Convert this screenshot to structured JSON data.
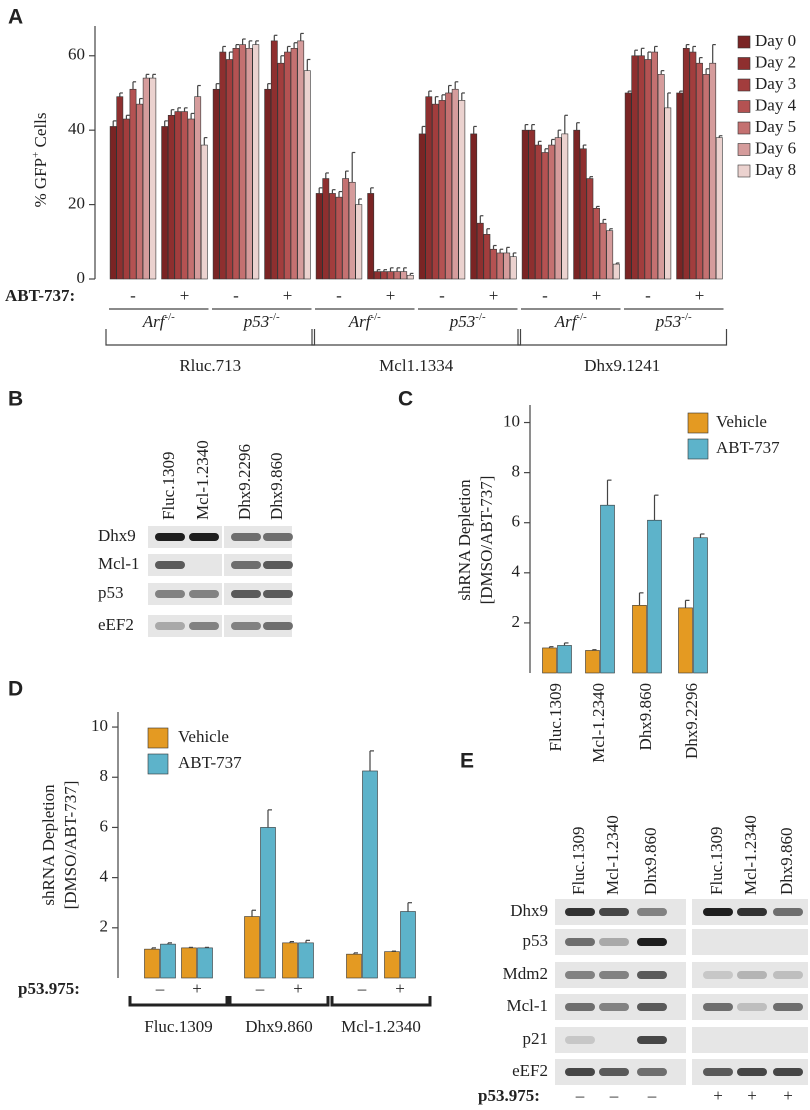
{
  "chart_data": [
    {
      "type": "bar",
      "panel": "A",
      "ylabel": {
        "text": "% GFP",
        "sup": "+",
        "rest": " Cells"
      },
      "category_label": "ABT-737:",
      "categories": [
        "-",
        "+",
        "-",
        "+",
        "-",
        "+",
        "-",
        "+",
        "-",
        "+",
        "-",
        "+"
      ],
      "genotypes": [
        {
          "name": "Arf",
          "sup": "-/-"
        },
        {
          "name": "p53",
          "sup": "-/-"
        },
        {
          "name": "Arf",
          "sup": "-/-"
        },
        {
          "name": "p53",
          "sup": "-/-"
        },
        {
          "name": "Arf",
          "sup": "-/-"
        },
        {
          "name": "p53",
          "sup": "-/-"
        }
      ],
      "groups": [
        "Rluc.713",
        "Mcl1.1334",
        "Dhx9.1241"
      ],
      "series": [
        {
          "name": "Day 0",
          "color": "#7a2424",
          "values": [
            41,
            41,
            51,
            51,
            23,
            23,
            39,
            39,
            40,
            40,
            50,
            50
          ],
          "errors": [
            1.5,
            1.5,
            1.5,
            1.5,
            1.5,
            1.5,
            2,
            2,
            1.5,
            2,
            0.5,
            0.5
          ]
        },
        {
          "name": "Day 2",
          "color": "#8e2f2f",
          "values": [
            49,
            44,
            61,
            64,
            27,
            2,
            49,
            15,
            40,
            35,
            60,
            62
          ],
          "errors": [
            1,
            1.5,
            1.5,
            1.5,
            1.5,
            0.5,
            1.5,
            2,
            1.5,
            1,
            1.5,
            1
          ]
        },
        {
          "name": "Day 3",
          "color": "#a23d3d",
          "values": [
            43,
            45,
            59,
            58,
            23,
            2,
            47,
            12,
            36,
            27,
            60,
            61
          ],
          "errors": [
            1,
            1,
            2,
            2,
            1,
            0.5,
            2,
            1.5,
            1,
            0.5,
            2,
            1.5
          ]
        },
        {
          "name": "Day 4",
          "color": "#b45252",
          "values": [
            51,
            45,
            62,
            61,
            22,
            2,
            48,
            8,
            34,
            19,
            59,
            58
          ],
          "errors": [
            2,
            1,
            1,
            1.5,
            1.5,
            1,
            1.5,
            1,
            1,
            0.5,
            2,
            1.5
          ]
        },
        {
          "name": "Day 5",
          "color": "#c47171",
          "values": [
            47,
            43,
            63,
            62,
            27,
            2,
            50,
            7,
            36,
            15,
            61,
            55
          ],
          "errors": [
            1.5,
            1.5,
            1.5,
            1.5,
            2,
            1,
            2,
            1,
            1.5,
            1,
            1.5,
            1.5
          ]
        },
        {
          "name": "Day 6",
          "color": "#d59c9c",
          "values": [
            54,
            49,
            62,
            64,
            26,
            2,
            51,
            7,
            38,
            13,
            55,
            58
          ],
          "errors": [
            1,
            3,
            2,
            2,
            8,
            1,
            2,
            1.5,
            2,
            0.5,
            1,
            5
          ]
        },
        {
          "name": "Day 8",
          "color": "#ebd2cf",
          "values": [
            54,
            36,
            63,
            56,
            20,
            1,
            48,
            6,
            39,
            4,
            46,
            38
          ],
          "errors": [
            1,
            2,
            1,
            3,
            1.5,
            0.5,
            2,
            1,
            5,
            0.3,
            4,
            0.5
          ]
        }
      ],
      "ylim": [
        0,
        68
      ],
      "yticks": [
        0,
        20,
        40,
        60
      ]
    },
    {
      "type": "bar",
      "panel": "C",
      "ylabel": [
        "shRNA Depletion",
        "[DMSO/ABT-737]"
      ],
      "categories": [
        "Fluc.1309",
        "Mcl-1.2340",
        "Dhx9.860",
        "Dhx9.2296"
      ],
      "series": [
        {
          "name": "Vehicle",
          "color": "#e49a22",
          "values": [
            1.0,
            0.9,
            2.7,
            2.6
          ],
          "errors": [
            0.05,
            0.03,
            0.5,
            0.3
          ]
        },
        {
          "name": "ABT-737",
          "color": "#5db3ca",
          "values": [
            1.1,
            6.7,
            6.1,
            5.4
          ],
          "errors": [
            0.1,
            1.0,
            1.0,
            0.15
          ]
        }
      ],
      "ylim": [
        0,
        10.7
      ],
      "yticks": [
        2,
        4,
        6,
        8,
        10
      ]
    },
    {
      "type": "bar",
      "panel": "D",
      "ylabel": [
        "shRNA Depletion",
        "[DMSO/ABT-737]"
      ],
      "category_label": "p53.975:",
      "categories": [
        "–",
        "+",
        "–",
        "+",
        "–",
        "+"
      ],
      "groups": [
        "Fluc.1309",
        "Dhx9.860",
        "Mcl-1.2340"
      ],
      "series": [
        {
          "name": "Vehicle",
          "color": "#e49a22",
          "values": [
            1.15,
            1.2,
            2.45,
            1.4,
            0.95,
            1.05
          ],
          "errors": [
            0.05,
            0.02,
            0.25,
            0.05,
            0.05,
            0.02
          ]
        },
        {
          "name": "ABT-737",
          "color": "#5db3ca",
          "values": [
            1.35,
            1.2,
            6.0,
            1.4,
            8.25,
            2.65
          ],
          "errors": [
            0.05,
            0.02,
            0.7,
            0.1,
            0.8,
            0.35
          ]
        }
      ],
      "ylim": [
        0,
        10.6
      ],
      "yticks": [
        2,
        4,
        6,
        8,
        10
      ]
    }
  ],
  "blots": [
    {
      "panel": "B",
      "lanes": [
        "Fluc.1309",
        "Mcl-1.2340",
        "Dhx9.2296",
        "Dhx9.860"
      ],
      "rows": [
        "Dhx9",
        "Mcl-1",
        "p53",
        "eEF2"
      ]
    },
    {
      "panel": "E",
      "lanes": [
        "Fluc.1309",
        "Mcl-1.2340",
        "Dhx9.860",
        "Fluc.1309",
        "Mcl-1.2340",
        "Dhx9.860"
      ],
      "rows": [
        "Dhx9",
        "p53",
        "Mdm2",
        "Mcl-1",
        "p21",
        "eEF2"
      ],
      "treatment_label": "p53.975:",
      "treatment": [
        "–",
        "–",
        "–",
        "+",
        "+",
        "+"
      ]
    }
  ]
}
